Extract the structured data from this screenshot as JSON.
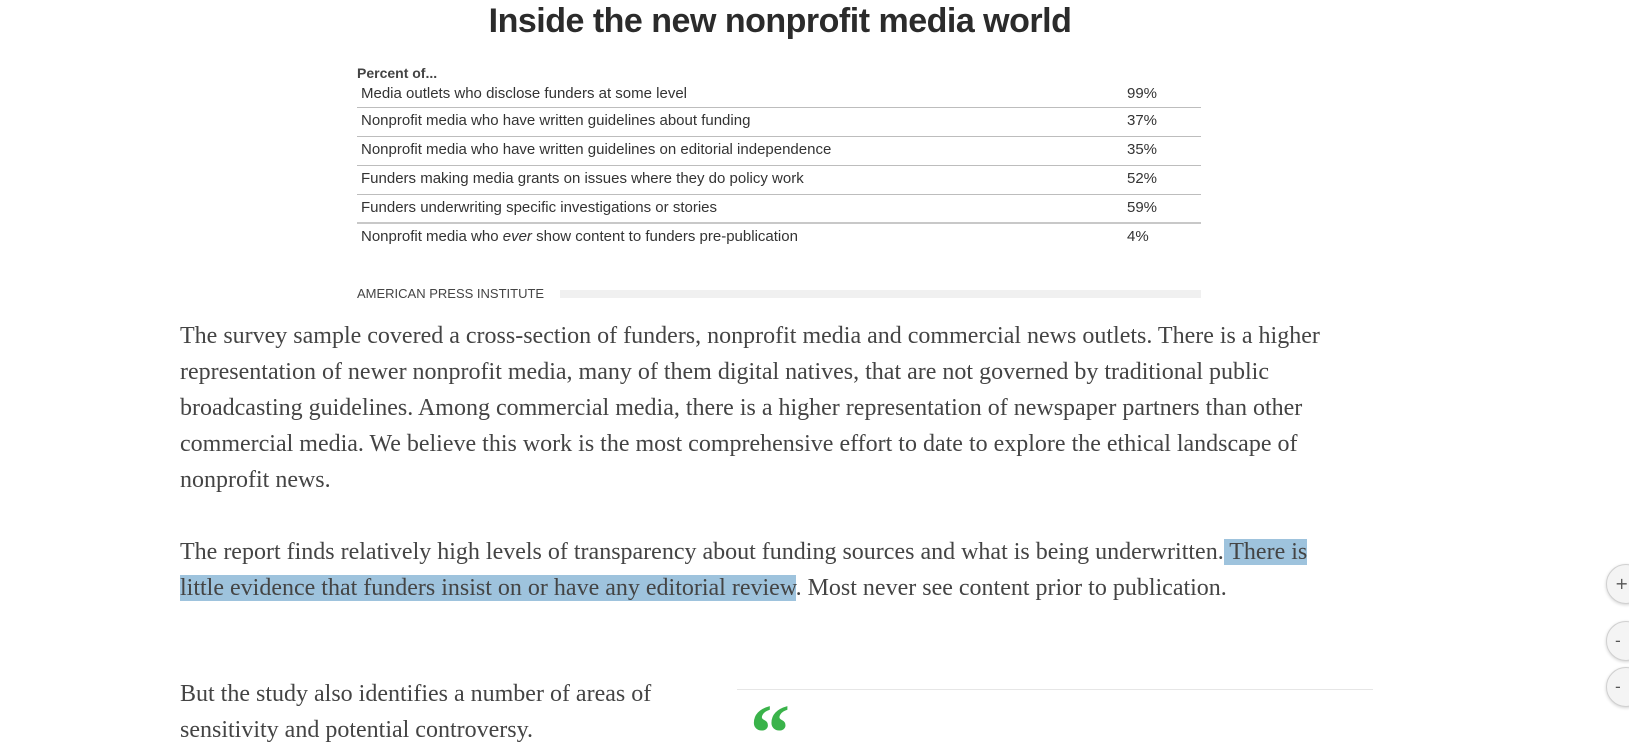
{
  "chart": {
    "title": "Inside the new nonprofit media world",
    "caption": "Percent of...",
    "source": "AMERICAN PRESS INSTITUTE"
  },
  "chart_data": {
    "type": "table",
    "title": "Inside the new nonprofit media world",
    "columns": [
      "Percent of...",
      ""
    ],
    "rows": [
      {
        "label": "Media outlets who disclose funders at some level",
        "value": "99%"
      },
      {
        "label": "Nonprofit media who have written guidelines about funding",
        "value": "37%"
      },
      {
        "label": "Nonprofit media who have written guidelines on editorial independence",
        "value": "35%"
      },
      {
        "label": "Funders making media grants on issues where they do policy work",
        "value": "52%"
      },
      {
        "label": "Funders underwriting specific investigations or stories",
        "value": "59%"
      },
      {
        "label_before": "Nonprofit media who ",
        "label_em": "ever",
        "label_after": " show content to funders pre-publication",
        "value": "4%"
      }
    ]
  },
  "article": {
    "p1": "The survey sample covered a cross-section of funders, nonprofit media and commercial news outlets. There is a higher representation of newer nonprofit media, many of them digital natives, that are not governed by traditional public broadcasting guidelines. Among commercial media, there is a higher representation of newspaper partners than other commercial media. We believe this work is the most comprehensive effort to date to explore the ethical landscape of nonprofit news.",
    "p2_before": "The report finds relatively high levels of transparency about funding sources and what is being underwritten.",
    "p2_highlight": " There is little evidence that funders insist on or have any editorial review",
    "p2_after": ". Most never see content prior to publication.",
    "p3": "But the study also identifies a number of areas of sensitivity and potential controversy."
  },
  "pull_quote": {
    "mark": "“",
    "color": "#3ab34a"
  },
  "highlight_color": "#9ec3dd",
  "side_buttons": [
    {
      "icon": "share-icon",
      "glyph": "+"
    },
    {
      "icon": "collapse-icon",
      "glyph": "-"
    },
    {
      "icon": "collapse-icon",
      "glyph": "-"
    }
  ]
}
